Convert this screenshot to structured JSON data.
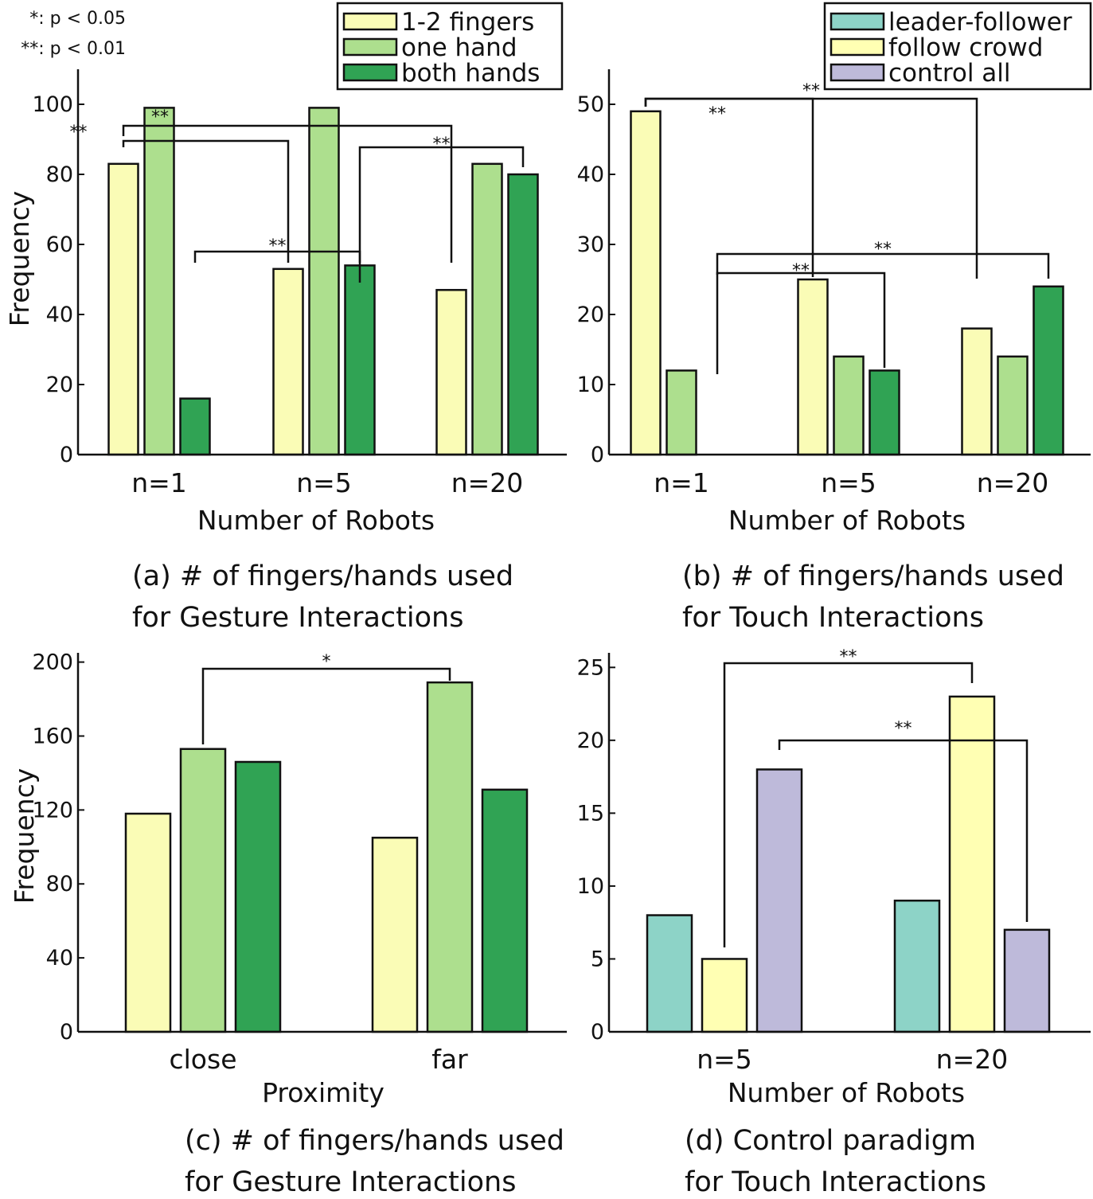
{
  "notes": [
    "*: p < 0.05",
    "**: p < 0.01"
  ],
  "legends": [
    {
      "entries": [
        {
          "label": "1-2 fingers",
          "color": "#fafcb6"
        },
        {
          "label": "one hand",
          "color": "#addf8e"
        },
        {
          "label": "both hands",
          "color": "#30a354"
        }
      ]
    },
    {
      "entries": [
        {
          "label": "leader-follower",
          "color": "#8dd3c7"
        },
        {
          "label": "follow crowd",
          "color": "#ffffb3"
        },
        {
          "label": "control all",
          "color": "#bebada"
        }
      ]
    }
  ],
  "chart_data": [
    {
      "type": "bar",
      "title": "",
      "caption": [
        "(a) # of fingers/hands used",
        "for Gesture Interactions"
      ],
      "xlabel": "Number of Robots",
      "ylabel": "Frequency",
      "categories": [
        "n=1",
        "n=5",
        "n=20"
      ],
      "yticks": [
        0,
        20,
        40,
        60,
        80,
        100
      ],
      "ylim": [
        0,
        110
      ],
      "series": [
        {
          "name": "1-2 fingers",
          "color": "#fafcb6",
          "values": [
            83,
            53,
            47
          ]
        },
        {
          "name": "one hand",
          "color": "#addf8e",
          "values": [
            99,
            99,
            83
          ]
        },
        {
          "name": "both hands",
          "color": "#30a354",
          "values": [
            16,
            54,
            80
          ]
        }
      ],
      "significance": [
        {
          "from": [
            0,
            0
          ],
          "to": [
            2,
            0
          ],
          "label": "**"
        },
        {
          "from": [
            0,
            0
          ],
          "to": [
            1,
            0
          ],
          "label": "**"
        },
        {
          "from": [
            1,
            2
          ],
          "to": [
            2,
            2
          ],
          "label": "**"
        },
        {
          "from": [
            0,
            2
          ],
          "to": [
            1,
            2
          ],
          "label": "**"
        }
      ]
    },
    {
      "type": "bar",
      "title": "",
      "caption": [
        "(b) # of fingers/hands used",
        "for Touch Interactions"
      ],
      "xlabel": "Number of Robots",
      "ylabel": "",
      "categories": [
        "n=1",
        "n=5",
        "n=20"
      ],
      "yticks": [
        0,
        10,
        20,
        30,
        40,
        50
      ],
      "ylim": [
        0,
        55
      ],
      "series": [
        {
          "name": "1-2 fingers",
          "color": "#fafcb6",
          "values": [
            49,
            25,
            18
          ]
        },
        {
          "name": "one hand",
          "color": "#addf8e",
          "values": [
            12,
            14,
            14
          ]
        },
        {
          "name": "both hands",
          "color": "#30a354",
          "values": [
            0,
            12,
            24
          ]
        }
      ],
      "significance": [
        {
          "from": [
            0,
            0
          ],
          "to": [
            2,
            0
          ],
          "label": "**"
        },
        {
          "from": [
            0,
            0
          ],
          "to": [
            1,
            0
          ],
          "label": "**"
        },
        {
          "from": [
            0,
            2
          ],
          "to": [
            2,
            2
          ],
          "label": "**"
        },
        {
          "from": [
            0,
            2
          ],
          "to": [
            1,
            2
          ],
          "label": "**"
        }
      ]
    },
    {
      "type": "bar",
      "title": "",
      "caption": [
        "(c) # of fingers/hands used",
        "for Gesture Interactions"
      ],
      "xlabel": "Proximity",
      "ylabel": "Frequency",
      "categories": [
        "close",
        "far"
      ],
      "yticks": [
        0,
        40,
        80,
        120,
        160,
        200
      ],
      "ylim": [
        0,
        205
      ],
      "series": [
        {
          "name": "1-2 fingers",
          "color": "#fafcb6",
          "values": [
            118,
            105
          ]
        },
        {
          "name": "one hand",
          "color": "#addf8e",
          "values": [
            153,
            189
          ]
        },
        {
          "name": "both hands",
          "color": "#30a354",
          "values": [
            146,
            131
          ]
        }
      ],
      "significance": [
        {
          "from": [
            0,
            1
          ],
          "to": [
            1,
            1
          ],
          "label": "*"
        }
      ]
    },
    {
      "type": "bar",
      "title": "",
      "caption": [
        "(d) Control paradigm",
        "for Touch Interactions"
      ],
      "xlabel": "Number of Robots",
      "ylabel": "",
      "categories": [
        "n=5",
        "n=20"
      ],
      "yticks": [
        0,
        5,
        10,
        15,
        20,
        25
      ],
      "ylim": [
        0,
        26
      ],
      "series": [
        {
          "name": "leader-follower",
          "color": "#8dd3c7",
          "values": [
            8,
            9
          ]
        },
        {
          "name": "follow crowd",
          "color": "#ffffb3",
          "values": [
            5,
            23
          ]
        },
        {
          "name": "control all",
          "color": "#bebada",
          "values": [
            18,
            7
          ]
        }
      ],
      "significance": [
        {
          "from": [
            0,
            1
          ],
          "to": [
            1,
            1
          ],
          "label": "**"
        },
        {
          "from": [
            0,
            2
          ],
          "to": [
            1,
            2
          ],
          "label": "**"
        }
      ]
    }
  ]
}
